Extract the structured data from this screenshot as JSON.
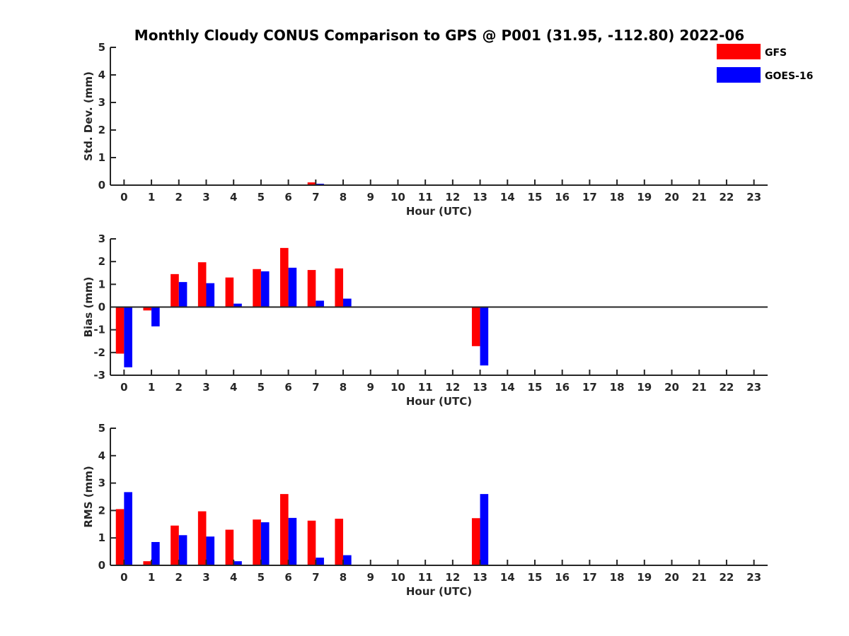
{
  "chart_data": [
    {
      "type": "bar",
      "title": "Monthly Cloudy CONUS Comparison to GPS @ P001 (31.95, -112.80) 2022-06",
      "xlabel": "Hour (UTC)",
      "ylabel": "Std. Dev. (mm)",
      "ylim": [
        0,
        5
      ],
      "yticks": [
        0,
        1,
        2,
        3,
        4,
        5
      ],
      "categories": [
        "0",
        "1",
        "2",
        "3",
        "4",
        "5",
        "6",
        "7",
        "8",
        "9",
        "10",
        "11",
        "12",
        "13",
        "14",
        "15",
        "16",
        "17",
        "18",
        "19",
        "20",
        "21",
        "22",
        "23"
      ],
      "series": [
        {
          "name": "GFS",
          "color": "#ff0000",
          "values": [
            0,
            0,
            0,
            0,
            0,
            0,
            0,
            0.1,
            0,
            0,
            0,
            0,
            0,
            0,
            0,
            0,
            0,
            0,
            0,
            0,
            0,
            0,
            0,
            0
          ]
        },
        {
          "name": "GOES-16",
          "color": "#0000ff",
          "values": [
            0,
            0,
            0,
            0,
            0,
            0,
            0,
            0.05,
            0,
            0,
            0,
            0,
            0,
            0,
            0,
            0,
            0,
            0,
            0,
            0,
            0,
            0,
            0,
            0
          ]
        }
      ],
      "legend": {
        "location": "top-right"
      }
    },
    {
      "type": "bar",
      "xlabel": "Hour (UTC)",
      "ylabel": "Bias (mm)",
      "ylim": [
        -3,
        3
      ],
      "yticks": [
        -3,
        -2,
        -1,
        0,
        1,
        2,
        3
      ],
      "categories": [
        "0",
        "1",
        "2",
        "3",
        "4",
        "5",
        "6",
        "7",
        "8",
        "9",
        "10",
        "11",
        "12",
        "13",
        "14",
        "15",
        "16",
        "17",
        "18",
        "19",
        "20",
        "21",
        "22",
        "23"
      ],
      "series": [
        {
          "name": "GFS",
          "color": "#ff0000",
          "values": [
            -2.05,
            -0.15,
            1.45,
            1.97,
            1.3,
            1.67,
            2.6,
            1.63,
            1.7,
            0,
            0,
            0,
            0,
            -1.72,
            0,
            0,
            0,
            0,
            0,
            0,
            0,
            0,
            0,
            0
          ]
        },
        {
          "name": "GOES-16",
          "color": "#0000ff",
          "values": [
            -2.65,
            -0.85,
            1.1,
            1.05,
            0.15,
            1.57,
            1.73,
            0.28,
            0.37,
            0,
            0,
            0,
            0,
            -2.57,
            0,
            0,
            0,
            0,
            0,
            0,
            0,
            0,
            0,
            0
          ]
        }
      ]
    },
    {
      "type": "bar",
      "xlabel": "Hour (UTC)",
      "ylabel": "RMS (mm)",
      "ylim": [
        0,
        5
      ],
      "yticks": [
        0,
        1,
        2,
        3,
        4,
        5
      ],
      "categories": [
        "0",
        "1",
        "2",
        "3",
        "4",
        "5",
        "6",
        "7",
        "8",
        "9",
        "10",
        "11",
        "12",
        "13",
        "14",
        "15",
        "16",
        "17",
        "18",
        "19",
        "20",
        "21",
        "22",
        "23"
      ],
      "series": [
        {
          "name": "GFS",
          "color": "#ff0000",
          "values": [
            2.05,
            0.15,
            1.45,
            1.97,
            1.3,
            1.67,
            2.6,
            1.63,
            1.7,
            0,
            0,
            0,
            0,
            1.72,
            0,
            0,
            0,
            0,
            0,
            0,
            0,
            0,
            0,
            0
          ]
        },
        {
          "name": "GOES-16",
          "color": "#0000ff",
          "values": [
            2.67,
            0.85,
            1.1,
            1.05,
            0.15,
            1.57,
            1.73,
            0.28,
            0.37,
            0,
            0,
            0,
            0,
            2.6,
            0,
            0,
            0,
            0,
            0,
            0,
            0,
            0,
            0,
            0
          ]
        }
      ]
    }
  ]
}
